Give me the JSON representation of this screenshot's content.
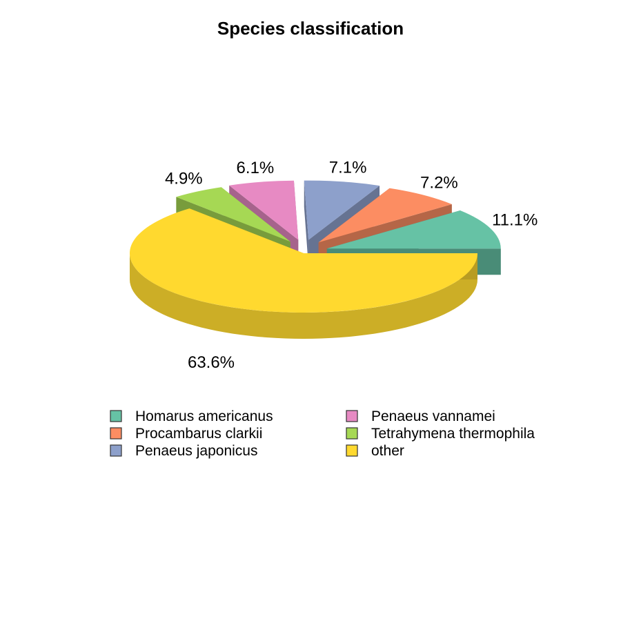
{
  "chart_data": {
    "type": "pie",
    "title": "Species classification",
    "slices": [
      {
        "label": "Homarus americanus",
        "value": 11.1,
        "text": "11.1%",
        "color": "#66C2A5"
      },
      {
        "label": "Procambarus clarkii",
        "value": 7.2,
        "text": "7.2%",
        "color": "#FC8D62"
      },
      {
        "label": "Penaeus japonicus",
        "value": 7.1,
        "text": "7.1%",
        "color": "#8DA0CB"
      },
      {
        "label": "Penaeus vannamei",
        "value": 6.1,
        "text": "6.1%",
        "color": "#E78AC3"
      },
      {
        "label": "Tetrahymena thermophila",
        "value": 4.9,
        "text": "4.9%",
        "color": "#A6D854"
      },
      {
        "label": "other",
        "value": 63.6,
        "text": "63.6%",
        "color": "#FFD92F"
      }
    ],
    "legend": {
      "position": "bottom",
      "columns": [
        [
          "Homarus americanus",
          "Procambarus clarkii",
          "Penaeus japonicus"
        ],
        [
          "Penaeus vannamei",
          "Tetrahymena thermophila",
          "other"
        ]
      ]
    }
  }
}
